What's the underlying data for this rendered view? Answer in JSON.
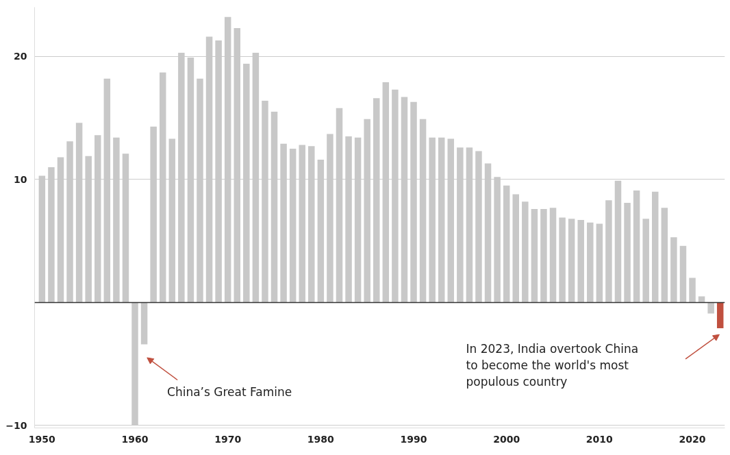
{
  "chart_data": {
    "type": "bar",
    "x": [
      1950,
      1951,
      1952,
      1953,
      1954,
      1955,
      1956,
      1957,
      1958,
      1959,
      1960,
      1961,
      1962,
      1963,
      1964,
      1965,
      1966,
      1967,
      1968,
      1969,
      1970,
      1971,
      1972,
      1973,
      1974,
      1975,
      1976,
      1977,
      1978,
      1979,
      1980,
      1981,
      1982,
      1983,
      1984,
      1985,
      1986,
      1987,
      1988,
      1989,
      1990,
      1991,
      1992,
      1993,
      1994,
      1995,
      1996,
      1997,
      1998,
      1999,
      2000,
      2001,
      2002,
      2003,
      2004,
      2005,
      2006,
      2007,
      2008,
      2009,
      2010,
      2011,
      2012,
      2013,
      2014,
      2015,
      2016,
      2017,
      2018,
      2019,
      2020,
      2021,
      2022,
      2023
    ],
    "values": [
      10.3,
      11.0,
      11.8,
      13.1,
      14.6,
      11.9,
      13.6,
      18.2,
      13.4,
      12.1,
      -10.0,
      -3.4,
      14.3,
      18.7,
      13.3,
      20.3,
      19.9,
      18.2,
      21.6,
      21.3,
      23.2,
      22.3,
      19.4,
      20.3,
      16.4,
      15.5,
      12.9,
      12.5,
      12.8,
      12.7,
      11.6,
      13.7,
      15.8,
      13.5,
      13.4,
      14.9,
      16.6,
      17.9,
      17.3,
      16.7,
      16.3,
      14.9,
      13.4,
      13.4,
      13.3,
      12.6,
      12.6,
      12.3,
      11.3,
      10.2,
      9.5,
      8.8,
      8.2,
      7.6,
      7.6,
      7.7,
      6.9,
      6.8,
      6.7,
      6.5,
      6.4,
      8.3,
      9.9,
      8.1,
      9.1,
      6.8,
      9.0,
      7.7,
      5.3,
      4.6,
      2.0,
      0.5,
      -0.9,
      -2.1
    ],
    "colors": [
      "#c8c8c8",
      "#c8c8c8",
      "#c8c8c8",
      "#c8c8c8",
      "#c8c8c8",
      "#c8c8c8",
      "#c8c8c8",
      "#c8c8c8",
      "#c8c8c8",
      "#c8c8c8",
      "#c8c8c8",
      "#c8c8c8",
      "#c8c8c8",
      "#c8c8c8",
      "#c8c8c8",
      "#c8c8c8",
      "#c8c8c8",
      "#c8c8c8",
      "#c8c8c8",
      "#c8c8c8",
      "#c8c8c8",
      "#c8c8c8",
      "#c8c8c8",
      "#c8c8c8",
      "#c8c8c8",
      "#c8c8c8",
      "#c8c8c8",
      "#c8c8c8",
      "#c8c8c8",
      "#c8c8c8",
      "#c8c8c8",
      "#c8c8c8",
      "#c8c8c8",
      "#c8c8c8",
      "#c8c8c8",
      "#c8c8c8",
      "#c8c8c8",
      "#c8c8c8",
      "#c8c8c8",
      "#c8c8c8",
      "#c8c8c8",
      "#c8c8c8",
      "#c8c8c8",
      "#c8c8c8",
      "#c8c8c8",
      "#c8c8c8",
      "#c8c8c8",
      "#c8c8c8",
      "#c8c8c8",
      "#c8c8c8",
      "#c8c8c8",
      "#c8c8c8",
      "#c8c8c8",
      "#c8c8c8",
      "#c8c8c8",
      "#c8c8c8",
      "#c8c8c8",
      "#c8c8c8",
      "#c8c8c8",
      "#c8c8c8",
      "#c8c8c8",
      "#c8c8c8",
      "#c8c8c8",
      "#c8c8c8",
      "#c8c8c8",
      "#c8c8c8",
      "#c8c8c8",
      "#c8c8c8",
      "#c8c8c8",
      "#c8c8c8",
      "#c8c8c8",
      "#c8c8c8",
      "#c8c8c8",
      "#c0503f"
    ],
    "xlim": [
      1949.2,
      2023.5
    ],
    "ylim": [
      -10.2,
      24
    ],
    "xticks": [
      1950,
      1960,
      1970,
      1980,
      1990,
      2000,
      2010,
      2020
    ],
    "yticks": [
      -10,
      10,
      20
    ],
    "grid": "y",
    "annotations": [
      "China’s Great Famine",
      "In 2023, India overtook China\nto become the world's most\npopulous country"
    ]
  }
}
